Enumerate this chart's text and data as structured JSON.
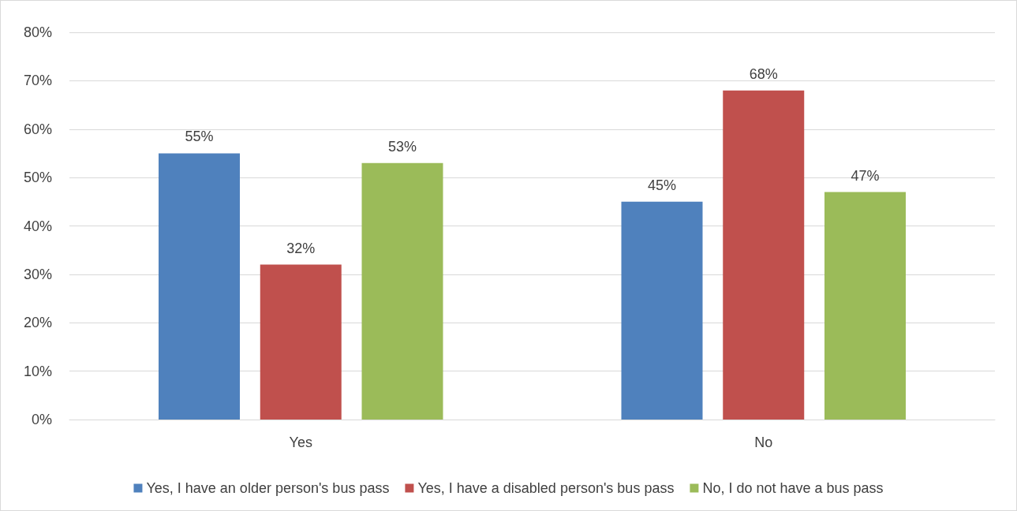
{
  "chart_data": {
    "type": "bar",
    "categories": [
      "Yes",
      "No"
    ],
    "series": [
      {
        "name": "Yes, I have an older person's bus pass",
        "color": "#4f81bd",
        "values": [
          55,
          45
        ],
        "value_labels": [
          "55%",
          "45%"
        ]
      },
      {
        "name": "Yes, I have a disabled person's bus pass",
        "color": "#c0504d",
        "values": [
          32,
          68
        ],
        "value_labels": [
          "32%",
          "68%"
        ]
      },
      {
        "name": "No, I do not have a bus pass",
        "color": "#9bbb59",
        "values": [
          53,
          47
        ],
        "value_labels": [
          "53%",
          "47%"
        ]
      }
    ],
    "ylim": [
      0,
      80
    ],
    "yticks": [
      {
        "value": 0,
        "label": "0%"
      },
      {
        "value": 10,
        "label": "10%"
      },
      {
        "value": 20,
        "label": "20%"
      },
      {
        "value": 30,
        "label": "30%"
      },
      {
        "value": 40,
        "label": "40%"
      },
      {
        "value": 50,
        "label": "50%"
      },
      {
        "value": 60,
        "label": "60%"
      },
      {
        "value": 70,
        "label": "70%"
      },
      {
        "value": 80,
        "label": "80%"
      }
    ],
    "grid": "y",
    "legend": "bottom"
  }
}
